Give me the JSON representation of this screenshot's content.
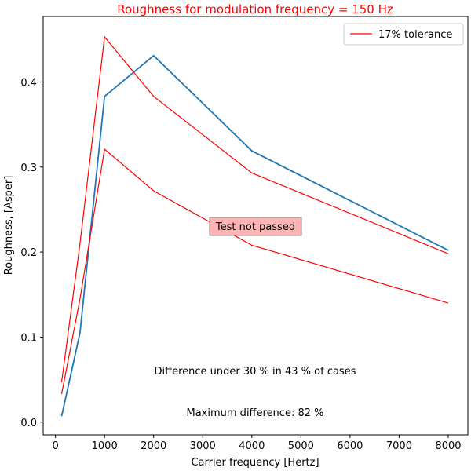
{
  "chart_data": {
    "type": "line",
    "title": "Roughness for modulation frequency = 150 Hz",
    "title_color": "#ff0000",
    "xlabel": "Carrier frequency [Hertz]",
    "ylabel": "Roughness, [Asper]",
    "xlim": [
      -250,
      8400
    ],
    "ylim": [
      -0.015,
      0.477
    ],
    "xticks": [
      0,
      1000,
      2000,
      3000,
      4000,
      5000,
      6000,
      7000,
      8000
    ],
    "yticks": [
      0.0,
      0.1,
      0.2,
      0.3,
      0.4
    ],
    "xtick_labels": [
      "0",
      "1000",
      "2000",
      "3000",
      "4000",
      "5000",
      "6000",
      "7000",
      "8000"
    ],
    "ytick_labels": [
      "0.0",
      "0.1",
      "0.2",
      "0.3",
      "0.4"
    ],
    "grid": false,
    "legend": {
      "placement": "top-right",
      "entries": [
        {
          "label": "17% tolerance",
          "color": "#ff0000"
        }
      ]
    },
    "series": [
      {
        "color": "#1f77b4",
        "x": [
          125,
          500,
          1000,
          2000,
          4000,
          8000
        ],
        "y": [
          0.007,
          0.105,
          0.383,
          0.431,
          0.319,
          0.202
        ]
      },
      {
        "color": "#ff0000",
        "x": [
          125,
          500,
          1000,
          2000,
          4000,
          8000
        ],
        "y": [
          0.047,
          0.21,
          0.453,
          0.383,
          0.293,
          0.198
        ]
      },
      {
        "color": "#ff0000",
        "x": [
          125,
          500,
          1000,
          2000,
          4000,
          8000
        ],
        "y": [
          0.033,
          0.145,
          0.321,
          0.272,
          0.208,
          0.14
        ]
      }
    ],
    "annotations": {
      "status": {
        "text": "Test not passed",
        "background": "#ffb3b3"
      },
      "difference": "Difference under 30 % in 43 % of cases",
      "maximum": "Maximum difference: 82 %"
    }
  }
}
